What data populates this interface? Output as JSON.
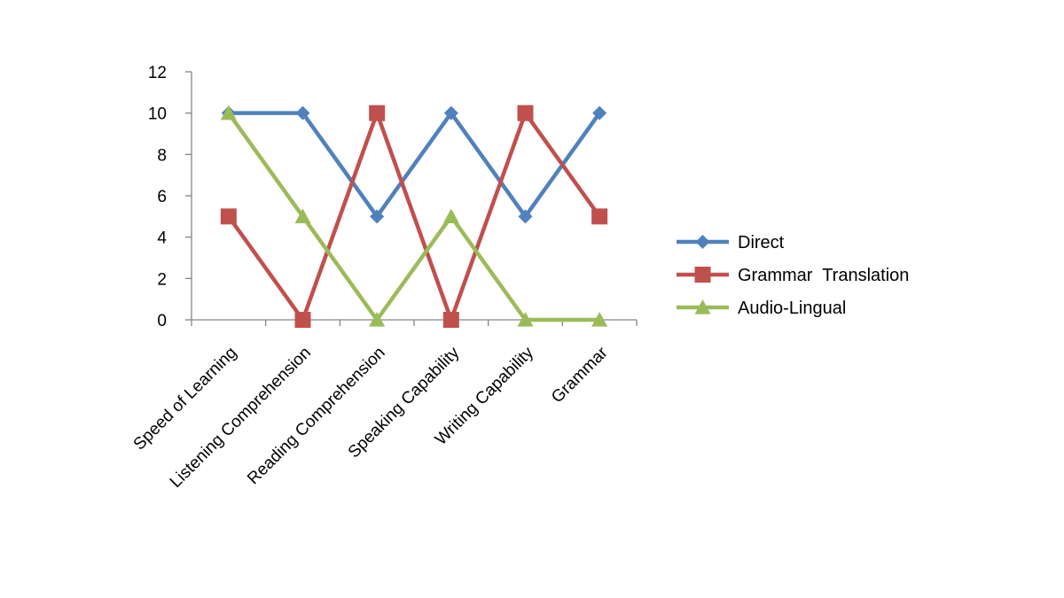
{
  "chart_data": {
    "type": "line",
    "categories": [
      "Speed of Learning",
      "Listening Comprehension",
      "Reading Comprehension",
      "Speaking Capability",
      "Writing Capability",
      "Grammar"
    ],
    "series": [
      {
        "name": "Direct",
        "values": [
          10,
          10,
          5,
          10,
          5,
          10
        ],
        "color": "#4F81BD",
        "marker": "diamond"
      },
      {
        "name": "Grammar  Translation",
        "values": [
          5,
          0,
          10,
          0,
          10,
          5
        ],
        "color": "#C0504D",
        "marker": "square"
      },
      {
        "name": "Audio-Lingual",
        "values": [
          10,
          5,
          0,
          5,
          0,
          0
        ],
        "color": "#9BBB59",
        "marker": "triangle"
      }
    ],
    "yticks": [
      0,
      2,
      4,
      6,
      8,
      10,
      12
    ],
    "ylim": [
      0,
      12
    ],
    "grid": false,
    "legend_position": "right",
    "title": "",
    "xlabel": "",
    "ylabel": ""
  }
}
